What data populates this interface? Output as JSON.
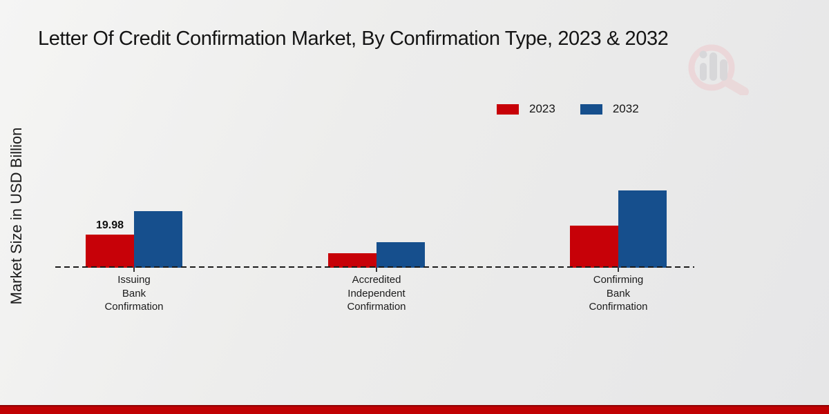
{
  "title": "Letter Of Credit Confirmation Market, By Confirmation Type, 2023 & 2032",
  "chart_data": {
    "type": "bar",
    "title": "Letter Of Credit Confirmation Market, By Confirmation Type, 2023 & 2032",
    "ylabel": "Market Size in USD Billion",
    "xlabel": "",
    "categories": [
      "Issuing Bank Confirmation",
      "Accredited Independent Confirmation",
      "Confirming Bank Confirmation"
    ],
    "categories_lines": [
      [
        "Issuing",
        "Bank",
        "Confirmation"
      ],
      [
        "Accredited",
        "Independent",
        "Confirmation"
      ],
      [
        "Confirming",
        "Bank",
        "Confirmation"
      ]
    ],
    "series": [
      {
        "name": "2023",
        "color": "#c70108",
        "values": [
          19.98,
          8.7,
          25.4
        ]
      },
      {
        "name": "2032",
        "color": "#164f8d",
        "values": [
          34.1,
          15.6,
          46.8
        ]
      }
    ],
    "data_labels": [
      {
        "series": "2023",
        "category": "Issuing Bank Confirmation",
        "text": "19.98"
      }
    ],
    "ylim": [
      0,
      50
    ],
    "grid": false,
    "legend_position": "top-right",
    "baseline_style": "dashed"
  },
  "watermark": {
    "icon": "magnifier-bar-chart-logo"
  },
  "colors": {
    "bar_red": "#c70108",
    "bar_blue": "#164f8d",
    "footer_bar": "#c00103",
    "footer_bar_edge": "#8e0003",
    "baseline": "#1a1a1a",
    "text": "#141414",
    "background_light": "#f5f5f4",
    "background_dark": "#e6e6e7"
  }
}
